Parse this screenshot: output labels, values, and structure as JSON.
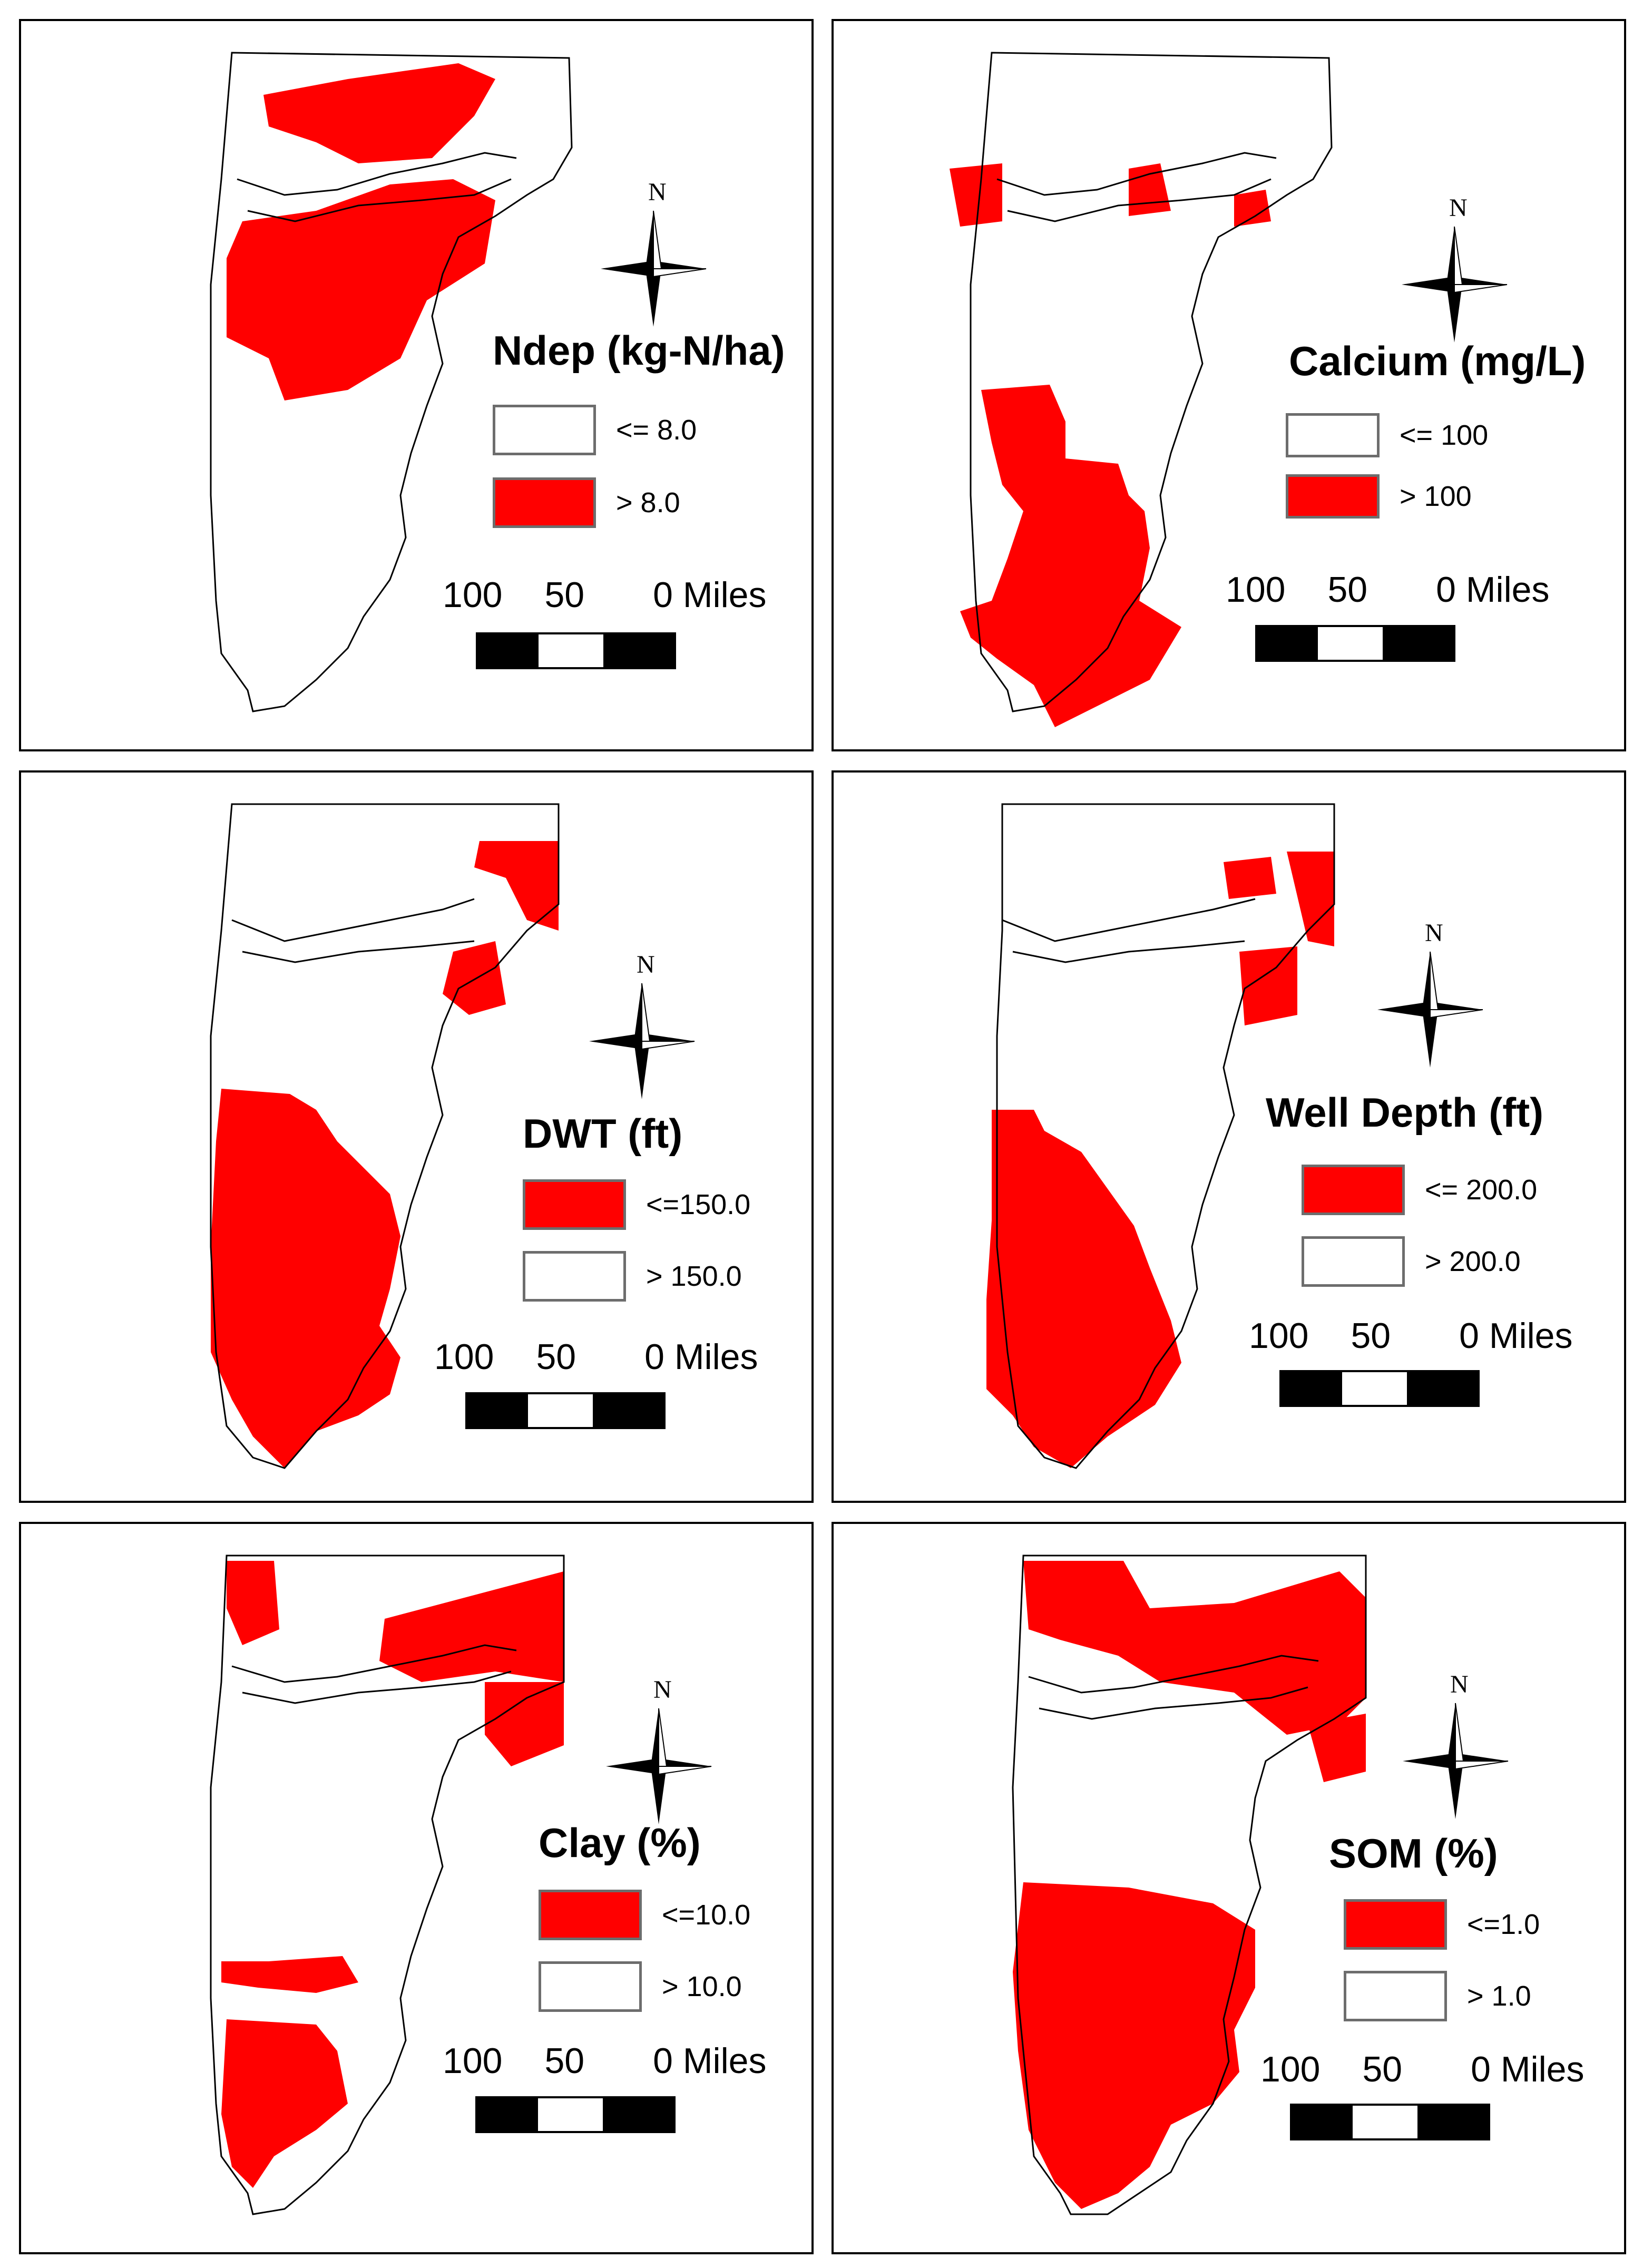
{
  "colors": {
    "flag": "#ff0000",
    "clear": "#ffffff",
    "outline": "#000000"
  },
  "north_label": "N",
  "panels": [
    {
      "id": "ndep",
      "title": "Ndep (kg-N/ha)",
      "legend": [
        {
          "label": "<= 8.0",
          "color": "#ffffff"
        },
        {
          "label": "> 8.0",
          "color": "#ff0000"
        }
      ],
      "scale": {
        "labels": [
          "100",
          "50",
          "0 Miles"
        ]
      }
    },
    {
      "id": "calcium",
      "title": "Calcium (mg/L)",
      "legend": [
        {
          "label": "<= 100",
          "color": "#ffffff"
        },
        {
          "label": "> 100",
          "color": "#ff0000"
        }
      ],
      "scale": {
        "labels": [
          "100",
          "50",
          "0 Miles"
        ]
      }
    },
    {
      "id": "dwt",
      "title": "DWT (ft)",
      "legend": [
        {
          "label": "<=150.0",
          "color": "#ff0000"
        },
        {
          "label": "> 150.0",
          "color": "#ffffff"
        }
      ],
      "scale": {
        "labels": [
          "100",
          "50",
          "0 Miles"
        ]
      }
    },
    {
      "id": "well-depth",
      "title": "Well Depth (ft)",
      "legend": [
        {
          "label": "<= 200.0",
          "color": "#ff0000"
        },
        {
          "label": "> 200.0",
          "color": "#ffffff"
        }
      ],
      "scale": {
        "labels": [
          "100",
          "50",
          "0 Miles"
        ]
      }
    },
    {
      "id": "clay",
      "title": "Clay (%)",
      "legend": [
        {
          "label": "<=10.0",
          "color": "#ff0000"
        },
        {
          "label": "> 10.0",
          "color": "#ffffff"
        }
      ],
      "scale": {
        "labels": [
          "100",
          "50",
          "0 Miles"
        ]
      }
    },
    {
      "id": "som",
      "title": "SOM (%)",
      "legend": [
        {
          "label": "<=1.0",
          "color": "#ff0000"
        },
        {
          "label": "> 1.0",
          "color": "#ffffff"
        }
      ],
      "scale": {
        "labels": [
          "100",
          "50",
          "0 Miles"
        ]
      }
    }
  ]
}
